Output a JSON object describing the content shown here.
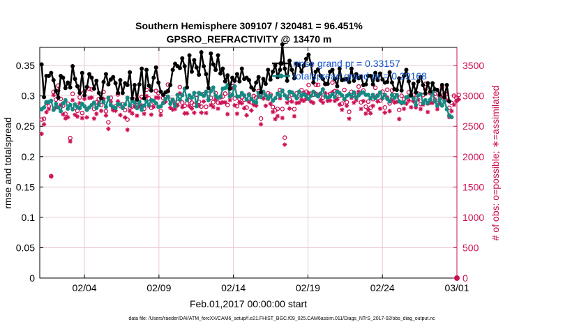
{
  "chart_data": {
    "type": "line",
    "title_line1": "Southern Hemisphere 309107 / 320481 = 96.451%",
    "title_line2": "GPSRO_REFRACTIVITY @ 13470 m",
    "xlabel": "Feb.01,2017 00:00:00 start",
    "ylabel_left": "rmse and totalspread",
    "ylabel_right": "# of obs: o=possible; ∗=assimilated",
    "footnote": "data file: /Users/raeder/DAI/ATM_forcXX/CAM6_setup/f.e21.FHIST_BGC.f09_025.CAM6assim.011/Diags_NTrS_2017-02/obs_diag_output.nc",
    "x_ticks": [
      "02/04",
      "02/09",
      "02/14",
      "02/19",
      "02/24",
      "03/01"
    ],
    "x_tick_days": [
      3,
      8,
      13,
      18,
      23,
      28
    ],
    "xlim_days": [
      0,
      28
    ],
    "y_left_ticks": [
      "0",
      "0.05",
      "0.1",
      "0.15",
      "0.2",
      "0.25",
      "0.3",
      "0.35"
    ],
    "ylim_left": [
      0,
      0.38
    ],
    "y_right_ticks": [
      "0",
      "500",
      "1000",
      "1500",
      "2000",
      "2500",
      "3000",
      "3500"
    ],
    "ylim_right": [
      0,
      3800
    ],
    "legend": {
      "placement": "top-right",
      "entries": [
        "rmse grand pr = 0.33157",
        "totalspread grand pr = 0.29168"
      ]
    },
    "colors": {
      "rmse": "#000000",
      "totalspread": "#138a83",
      "obs": "#cc1155",
      "legend_text": "#1155cc",
      "grid": "#e8c8d4"
    },
    "grid": true,
    "series": [
      {
        "name": "rmse grand pr = 0.33157",
        "values": [
          0.352,
          0.298,
          0.333,
          0.333,
          0.338,
          0.326,
          0.308,
          0.297,
          0.333,
          0.33,
          0.313,
          0.322,
          0.314,
          0.349,
          0.328,
          0.316,
          0.305,
          0.338,
          0.301,
          0.315,
          0.336,
          0.33,
          0.312,
          0.325,
          0.305,
          0.296,
          0.323,
          0.336,
          0.319,
          0.327,
          0.331,
          0.321,
          0.305,
          0.326,
          0.305,
          0.321,
          0.318,
          0.339,
          0.296,
          0.318,
          0.294,
          0.319,
          0.345,
          0.296,
          0.343,
          0.317,
          0.309,
          0.33,
          0.347,
          0.322,
          0.307,
          0.302,
          0.306,
          0.308,
          0.318,
          0.343,
          0.353,
          0.349,
          0.346,
          0.362,
          0.349,
          0.314,
          0.367,
          0.34,
          0.359,
          0.347,
          0.335,
          0.372,
          0.349,
          0.336,
          0.313,
          0.37,
          0.352,
          0.343,
          0.367,
          0.337,
          0.345,
          0.324,
          0.334,
          0.312,
          0.33,
          0.325,
          0.336,
          0.324,
          0.345,
          0.328,
          0.33,
          0.326,
          0.314,
          0.31,
          0.322,
          0.331,
          0.306,
          0.328,
          0.32,
          0.343,
          0.327,
          0.34,
          0.35,
          0.331,
          0.343,
          0.385,
          0.345,
          0.325,
          0.358,
          0.343,
          0.329,
          0.353,
          0.351,
          0.34,
          0.35,
          0.361,
          0.368,
          0.352,
          0.322,
          0.34,
          0.344,
          0.333,
          0.328,
          0.32,
          0.32,
          0.34,
          0.343,
          0.328,
          0.316,
          0.345,
          0.326,
          0.327,
          0.328,
          0.323,
          0.345,
          0.325,
          0.336,
          0.329,
          0.332,
          0.318,
          0.319,
          0.333,
          0.333,
          0.319,
          0.338,
          0.326,
          0.337,
          0.327,
          0.322,
          0.323,
          0.339,
          0.322,
          0.311,
          0.31,
          0.329,
          0.309,
          0.333,
          0.343,
          0.324,
          0.301,
          0.32,
          0.306,
          0.324,
          0.331,
          0.318,
          0.304,
          0.321,
          0.307,
          0.321,
          0.311,
          0.31,
          0.302,
          0.318,
          0.298,
          0.318,
          0.291
        ]
      },
      {
        "name": "totalspread grand pr = 0.29168",
        "values": [
          0.278,
          0.281,
          0.29,
          0.29,
          0.292,
          0.277,
          0.287,
          0.281,
          0.275,
          0.288,
          0.293,
          0.279,
          0.285,
          0.278,
          0.286,
          0.282,
          0.28,
          0.287,
          0.283,
          0.277,
          0.281,
          0.285,
          0.289,
          0.28,
          0.285,
          0.296,
          0.29,
          0.282,
          0.297,
          0.285,
          0.282,
          0.28,
          0.287,
          0.286,
          0.28,
          0.286,
          0.297,
          0.284,
          0.292,
          0.289,
          0.28,
          0.29,
          0.277,
          0.284,
          0.291,
          0.285,
          0.293,
          0.292,
          0.288,
          0.282,
          0.283,
          0.288,
          0.295,
          0.299,
          0.287,
          0.294,
          0.283,
          0.302,
          0.294,
          0.301,
          0.312,
          0.293,
          0.301,
          0.297,
          0.305,
          0.283,
          0.305,
          0.303,
          0.3,
          0.307,
          0.293,
          0.308,
          0.314,
          0.3,
          0.297,
          0.299,
          0.312,
          0.313,
          0.318,
          0.299,
          0.302,
          0.316,
          0.299,
          0.299,
          0.305,
          0.301,
          0.294,
          0.302,
          0.295,
          0.291,
          0.289,
          0.305,
          0.298,
          0.307,
          0.301,
          0.296,
          0.3,
          0.292,
          0.296,
          0.304,
          0.3,
          0.309,
          0.301,
          0.296,
          0.307,
          0.306,
          0.301,
          0.296,
          0.307,
          0.3,
          0.303,
          0.3,
          0.295,
          0.3,
          0.307,
          0.302,
          0.299,
          0.304,
          0.311,
          0.299,
          0.297,
          0.299,
          0.303,
          0.298,
          0.307,
          0.305,
          0.301,
          0.295,
          0.3,
          0.303,
          0.299,
          0.306,
          0.297,
          0.301,
          0.305,
          0.306,
          0.302,
          0.302,
          0.296,
          0.302,
          0.296,
          0.3,
          0.306,
          0.297,
          0.302,
          0.295,
          0.291,
          0.302,
          0.297,
          0.302,
          0.291,
          0.289,
          0.289,
          0.298,
          0.299,
          0.302,
          0.296,
          0.285,
          0.301,
          0.303,
          0.288,
          0.293,
          0.288,
          0.294,
          0.307,
          0.291,
          0.284,
          0.295,
          0.284,
          0.292,
          0.278,
          0.268,
          0.265
        ]
      },
      {
        "name": "possible",
        "values": [
          2611,
          2623,
          2887,
          2826,
          1679,
          3068,
          2939,
          3171,
          2952,
          2839,
          2705,
          2873,
          2306,
          3035,
          2806,
          2756,
          2977,
          2719,
          3071,
          2778,
          3115,
          3107,
          2787,
          2894,
          2948,
          2850,
          3067,
          2749,
          2566,
          2970,
          2804,
          2830,
          3025,
          2833,
          2863,
          2767,
          2611,
          2813,
          2826,
          2939,
          2844,
          2954,
          2987,
          2789,
          3100,
          2959,
          2806,
          2892,
          3082,
          3048,
          2754,
          2965,
          2982,
          3186,
          2937,
          2915,
          2864,
          2899,
          3145,
          2891,
          2836,
          2878,
          2924,
          2890,
          2857,
          3022,
          2902,
          2826,
          3029,
          2822,
          3035,
          2968,
          2896,
          3046,
          2891,
          2978,
          2991,
          3039,
          2851,
          3025,
          3216,
          2958,
          2832,
          2950,
          2973,
          2939,
          2809,
          3025,
          2897,
          2999,
          2975,
          3080,
          2628,
          3050,
          2979,
          3044,
          3024,
          2818,
          2762,
          2787,
          3098,
          2785,
          2313,
          2973,
          2944,
          3015,
          2783,
          3044,
          3008,
          3095,
          3044,
          3070,
          3180,
          3036,
          3021,
          3184,
          3181,
          3037,
          2970,
          3195,
          3017,
          3032,
          3220,
          3079,
          3073,
          3000,
          2873,
          3098,
          2898,
          2739,
          3068,
          3018,
          3017,
          3155,
          2895,
          3089,
          2824,
          2907,
          2807,
          2948,
          3135,
          3006,
          2921,
          3071,
          2810,
          3102,
          2877,
          3090,
          3007,
          2995,
          2770,
          3003,
          2950,
          2977,
          3059,
          2949,
          3019,
          2958,
          3036,
          2867,
          3015,
          3198,
          2877,
          3052,
          3013,
          3033,
          2887,
          3000,
          3140,
          3039,
          3032,
          2804,
          2885,
          3003,
          2968,
          3018
        ]
      },
      {
        "name": "assimilated",
        "values": [
          2376,
          2533,
          2733,
          2786,
          1674,
          3015,
          2809,
          3092,
          2850,
          2697,
          2631,
          2649,
          2251,
          2931,
          2690,
          2660,
          2880,
          2635,
          2951,
          2647,
          2965,
          2974,
          2627,
          2705,
          2879,
          2755,
          2952,
          2679,
          2458,
          2905,
          2764,
          2758,
          2912,
          2685,
          2806,
          2646,
          2442,
          2752,
          2712,
          2827,
          2675,
          2822,
          2845,
          2706,
          2999,
          2836,
          2691,
          2821,
          2974,
          2970,
          2686,
          2886,
          2905,
          3082,
          2804,
          2775,
          2786,
          2842,
          3043,
          2817,
          2714,
          2714,
          2831,
          2794,
          2723,
          2876,
          2840,
          2725,
          2909,
          2719,
          2946,
          2849,
          2818,
          2943,
          2790,
          2882,
          2896,
          2894,
          2700,
          2932,
          3130,
          2846,
          2707,
          2893,
          2879,
          2798,
          2682,
          2902,
          2761,
          2854,
          2840,
          2990,
          2534,
          2957,
          2837,
          2949,
          2870,
          2736,
          2619,
          2668,
          2961,
          2637,
          2198,
          2887,
          2793,
          2905,
          2666,
          2882,
          2889,
          2936,
          2919,
          2952,
          3048,
          2907,
          2885,
          3041,
          3015,
          2928,
          2889,
          3044,
          2919,
          2924,
          3063,
          2918,
          2947,
          2857,
          2772,
          2938,
          2838,
          2625,
          2967,
          2888,
          2932,
          3070,
          2786,
          2915,
          2709,
          2769,
          2715,
          2837,
          2972,
          2909,
          2790,
          2958,
          2725,
          2974,
          2751,
          2928,
          2892,
          2902,
          2619,
          2880,
          2788,
          2873,
          2920,
          2813,
          2910,
          2810,
          2937,
          2785,
          2856,
          3103,
          2735,
          2885,
          2886,
          2947,
          2783,
          2878,
          2977,
          2922,
          2932,
          2652,
          2751,
          2854,
          2915,
          2942
        ]
      }
    ],
    "end_point": {
      "possible": 0,
      "assimilated": 0
    }
  }
}
